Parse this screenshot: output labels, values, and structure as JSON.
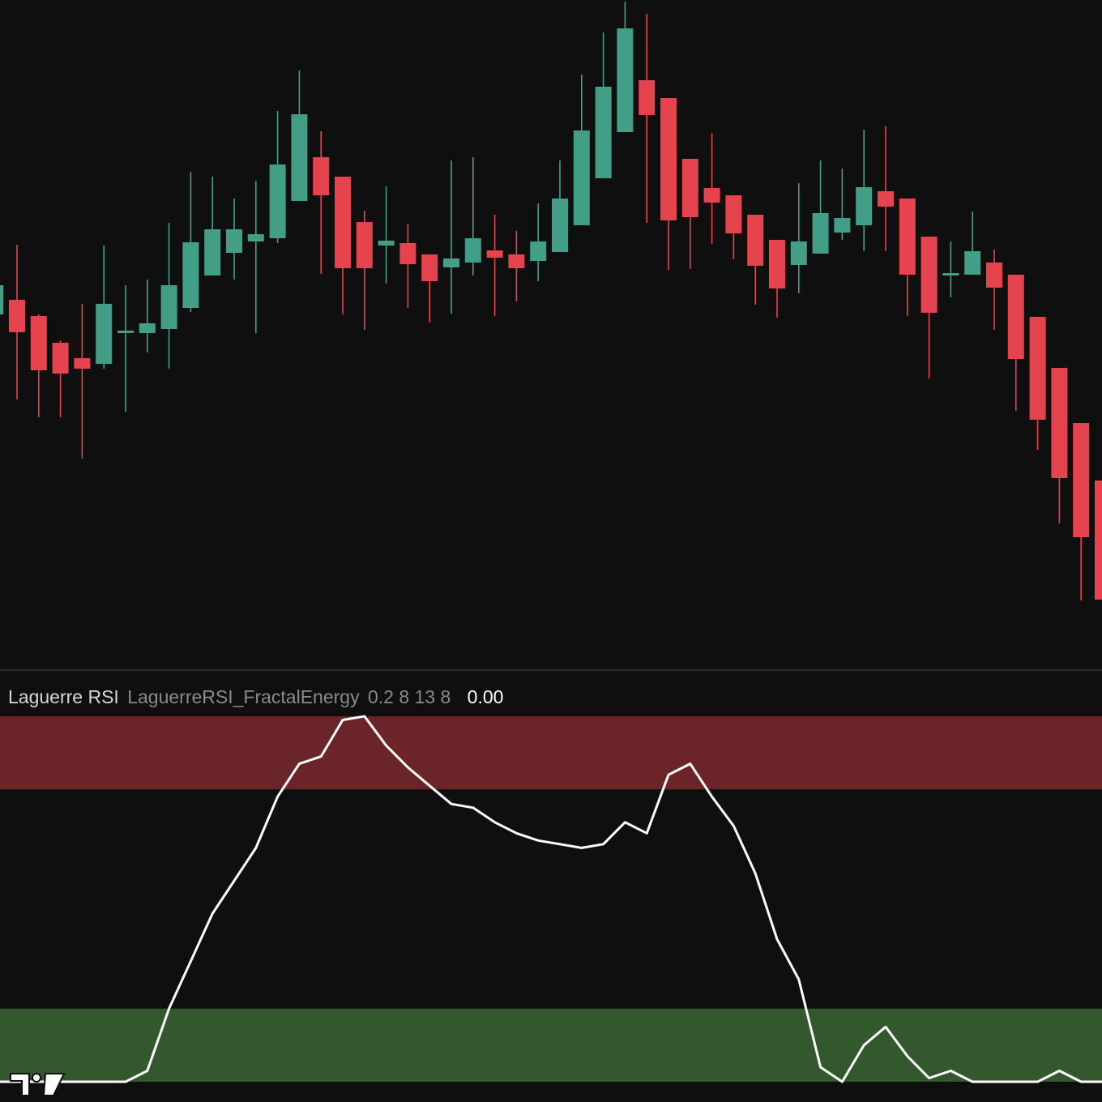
{
  "chart_data": [
    {
      "type": "candlestick",
      "up_color": "#429e87",
      "down_color": "#e5444f",
      "ylim": [
        17.4,
        100
      ],
      "open": [
        61.2,
        63.0,
        61.0,
        57.7,
        55.8,
        55.1,
        58.9,
        58.9,
        59.4,
        62.0,
        66.0,
        68.8,
        70.2,
        70.6,
        75.2,
        80.6,
        78.2,
        72.6,
        69.7,
        70.0,
        68.6,
        67.0,
        67.6,
        69.1,
        68.6,
        67.8,
        68.9,
        72.2,
        78.0,
        83.7,
        90.1,
        87.9,
        80.4,
        76.8,
        75.9,
        73.5,
        70.4,
        67.3,
        68.7,
        71.3,
        72.2,
        76.4,
        75.5,
        70.8,
        66.0,
        66.1,
        67.6,
        66.1,
        60.9,
        54.6,
        47.8,
        40.7
      ],
      "high": [
        65.5,
        69.8,
        61.2,
        58.0,
        62.5,
        69.7,
        64.8,
        65.5,
        72.5,
        78.8,
        78.2,
        75.5,
        77.7,
        86.3,
        91.3,
        83.8,
        78.2,
        74.0,
        77.0,
        72.4,
        68.6,
        80.2,
        80.6,
        73.5,
        71.5,
        74.9,
        80.2,
        90.8,
        96.0,
        99.8,
        98.3,
        87.9,
        80.4,
        83.6,
        75.9,
        73.5,
        70.4,
        77.4,
        80.2,
        79.2,
        84.0,
        84.4,
        75.5,
        70.8,
        70.2,
        73.9,
        69.2,
        66.1,
        60.9,
        54.6,
        47.8,
        40.7
      ],
      "low": [
        60.5,
        50.7,
        48.5,
        48.5,
        43.4,
        54.5,
        49.2,
        56.5,
        54.5,
        61.5,
        66.0,
        65.5,
        58.9,
        70.0,
        75.2,
        66.2,
        61.2,
        59.3,
        65.0,
        62.0,
        60.2,
        61.3,
        66.0,
        61.0,
        62.8,
        65.3,
        68.9,
        72.2,
        78.0,
        83.7,
        72.5,
        66.7,
        66.8,
        69.9,
        68.0,
        62.4,
        60.8,
        63.8,
        68.7,
        70.4,
        69.0,
        69.0,
        61.0,
        53.3,
        63.3,
        66.1,
        59.3,
        49.3,
        44.5,
        35.4,
        25.9,
        26.0
      ],
      "close": [
        64.8,
        59.0,
        54.3,
        53.9,
        54.5,
        62.5,
        59.2,
        60.1,
        64.8,
        70.1,
        71.7,
        71.7,
        71.1,
        79.7,
        85.9,
        75.9,
        66.9,
        66.9,
        70.3,
        67.4,
        65.3,
        68.1,
        70.6,
        68.2,
        66.9,
        70.2,
        75.5,
        83.9,
        89.3,
        96.5,
        85.8,
        72.8,
        73.2,
        75.0,
        71.2,
        67.2,
        64.4,
        70.2,
        73.7,
        73.1,
        76.9,
        74.5,
        66.1,
        61.4,
        66.3,
        69.0,
        64.5,
        55.7,
        48.2,
        41.0,
        33.7,
        26.0
      ]
    },
    {
      "type": "line",
      "title": "Laguerre RSI",
      "script_name": "LaguerreRSI_FractalEnergy",
      "inputs": "0.2 8 13 8",
      "last_value": "0.00",
      "color": "#ffffff",
      "ylim": [
        0,
        1
      ],
      "zones": [
        {
          "from": 0.8,
          "to": 1,
          "color": "#6b2428"
        },
        {
          "from": 0,
          "to": 0.2,
          "color": "#34582e"
        }
      ],
      "values": [
        0,
        0,
        0,
        0,
        0,
        0,
        0,
        0.03,
        0.2,
        0.33,
        0.46,
        0.55,
        0.64,
        0.78,
        0.87,
        0.89,
        0.99,
        1.0,
        0.92,
        0.86,
        0.81,
        0.76,
        0.75,
        0.71,
        0.68,
        0.66,
        0.65,
        0.64,
        0.65,
        0.71,
        0.68,
        0.84,
        0.87,
        0.78,
        0.7,
        0.57,
        0.39,
        0.28,
        0.04,
        0,
        0.1,
        0.15,
        0.07,
        0.01,
        0.03,
        0,
        0,
        0,
        0,
        0.03,
        0,
        0
      ]
    }
  ]
}
